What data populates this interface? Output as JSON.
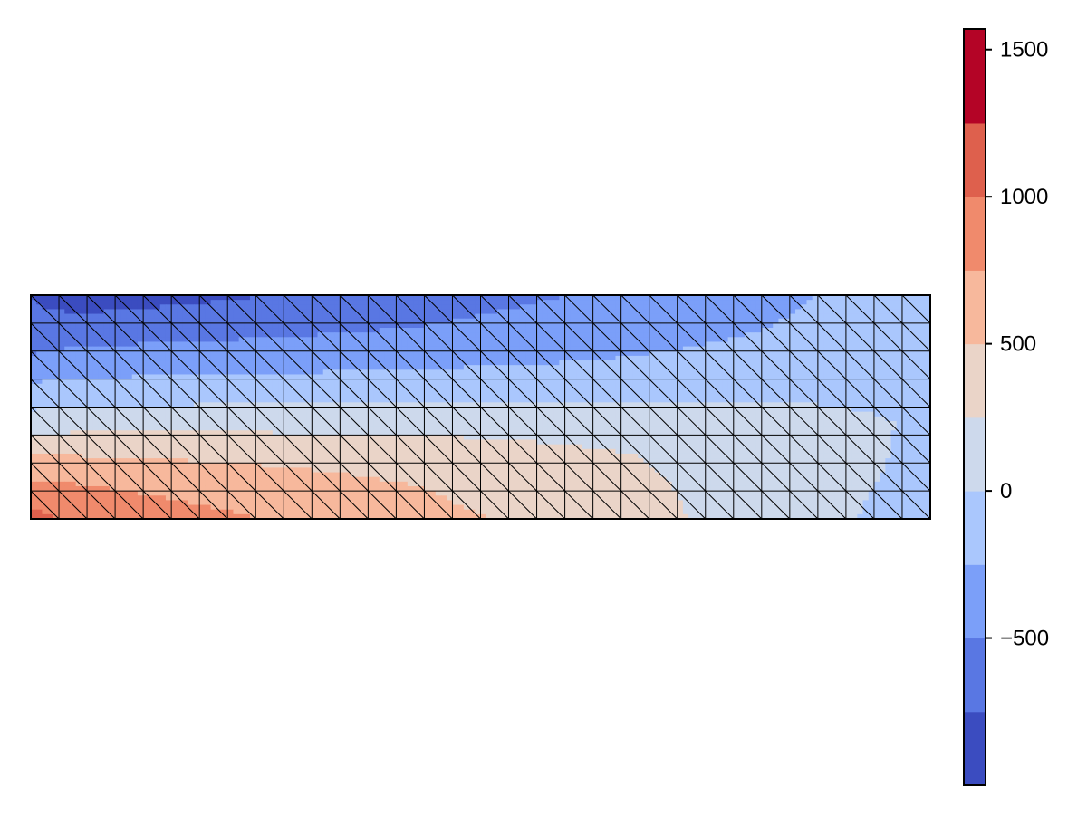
{
  "chart_data": {
    "type": "heatmap",
    "title": "",
    "xlabel": "",
    "ylabel": "",
    "mesh": {
      "element": "triangle",
      "columns": 32,
      "rows": 8,
      "diagonal": "top-left to bottom-right",
      "show_edges": true
    },
    "field_samples": [
      {
        "col": 0,
        "value": [
          -760,
          -680,
          -470,
          -170,
          120,
          520,
          820,
          1080
        ]
      },
      {
        "col": 1,
        "value": [
          -840,
          -660,
          -430,
          -150,
          140,
          500,
          800,
          1000
        ]
      },
      {
        "col": 2,
        "value": [
          -870,
          -650,
          -410,
          -140,
          150,
          490,
          760,
          920
        ]
      },
      {
        "col": 4,
        "value": [
          -840,
          -620,
          -390,
          -130,
          160,
          470,
          720,
          860
        ]
      },
      {
        "col": 7,
        "value": [
          -780,
          -590,
          -370,
          -120,
          170,
          450,
          660,
          780
        ]
      },
      {
        "col": 10,
        "value": [
          -720,
          -550,
          -350,
          -110,
          170,
          420,
          590,
          700
        ]
      },
      {
        "col": 13,
        "value": [
          -650,
          -510,
          -330,
          -100,
          170,
          390,
          520,
          600
        ]
      },
      {
        "col": 16,
        "value": [
          -570,
          -460,
          -300,
          -90,
          160,
          350,
          440,
          510
        ]
      },
      {
        "col": 19,
        "value": [
          -500,
          -410,
          -270,
          -80,
          150,
          300,
          360,
          410
        ]
      },
      {
        "col": 22,
        "value": [
          -420,
          -350,
          -230,
          -70,
          130,
          240,
          270,
          290
        ]
      },
      {
        "col": 25,
        "value": [
          -330,
          -280,
          -190,
          -60,
          110,
          180,
          200,
          200
        ]
      },
      {
        "col": 28,
        "value": [
          -250,
          -210,
          -150,
          -60,
          80,
          110,
          110,
          100
        ]
      },
      {
        "col": 30,
        "value": [
          -200,
          -180,
          -140,
          -70,
          30,
          30,
          0,
          -40
        ]
      },
      {
        "col": 32,
        "value": [
          -170,
          -160,
          -140,
          -100,
          -50,
          -70,
          -110,
          -140
        ]
      }
    ],
    "colorbar": {
      "range": [
        -1000,
        1570
      ],
      "levels": [
        -1000,
        -750,
        -500,
        -250,
        0,
        250,
        500,
        750,
        1000,
        1250,
        1570
      ],
      "colors": [
        "#3b4cc0",
        "#5977e3",
        "#7b9ff9",
        "#aac7fd",
        "#cdd9ec",
        "#ead4c8",
        "#f7b89c",
        "#f08a6c",
        "#de604d",
        "#b40426"
      ],
      "ticks": [
        "1500",
        "1000",
        "500",
        "0",
        "−500"
      ],
      "tick_values": [
        1500,
        1000,
        500,
        0,
        -500
      ]
    }
  }
}
